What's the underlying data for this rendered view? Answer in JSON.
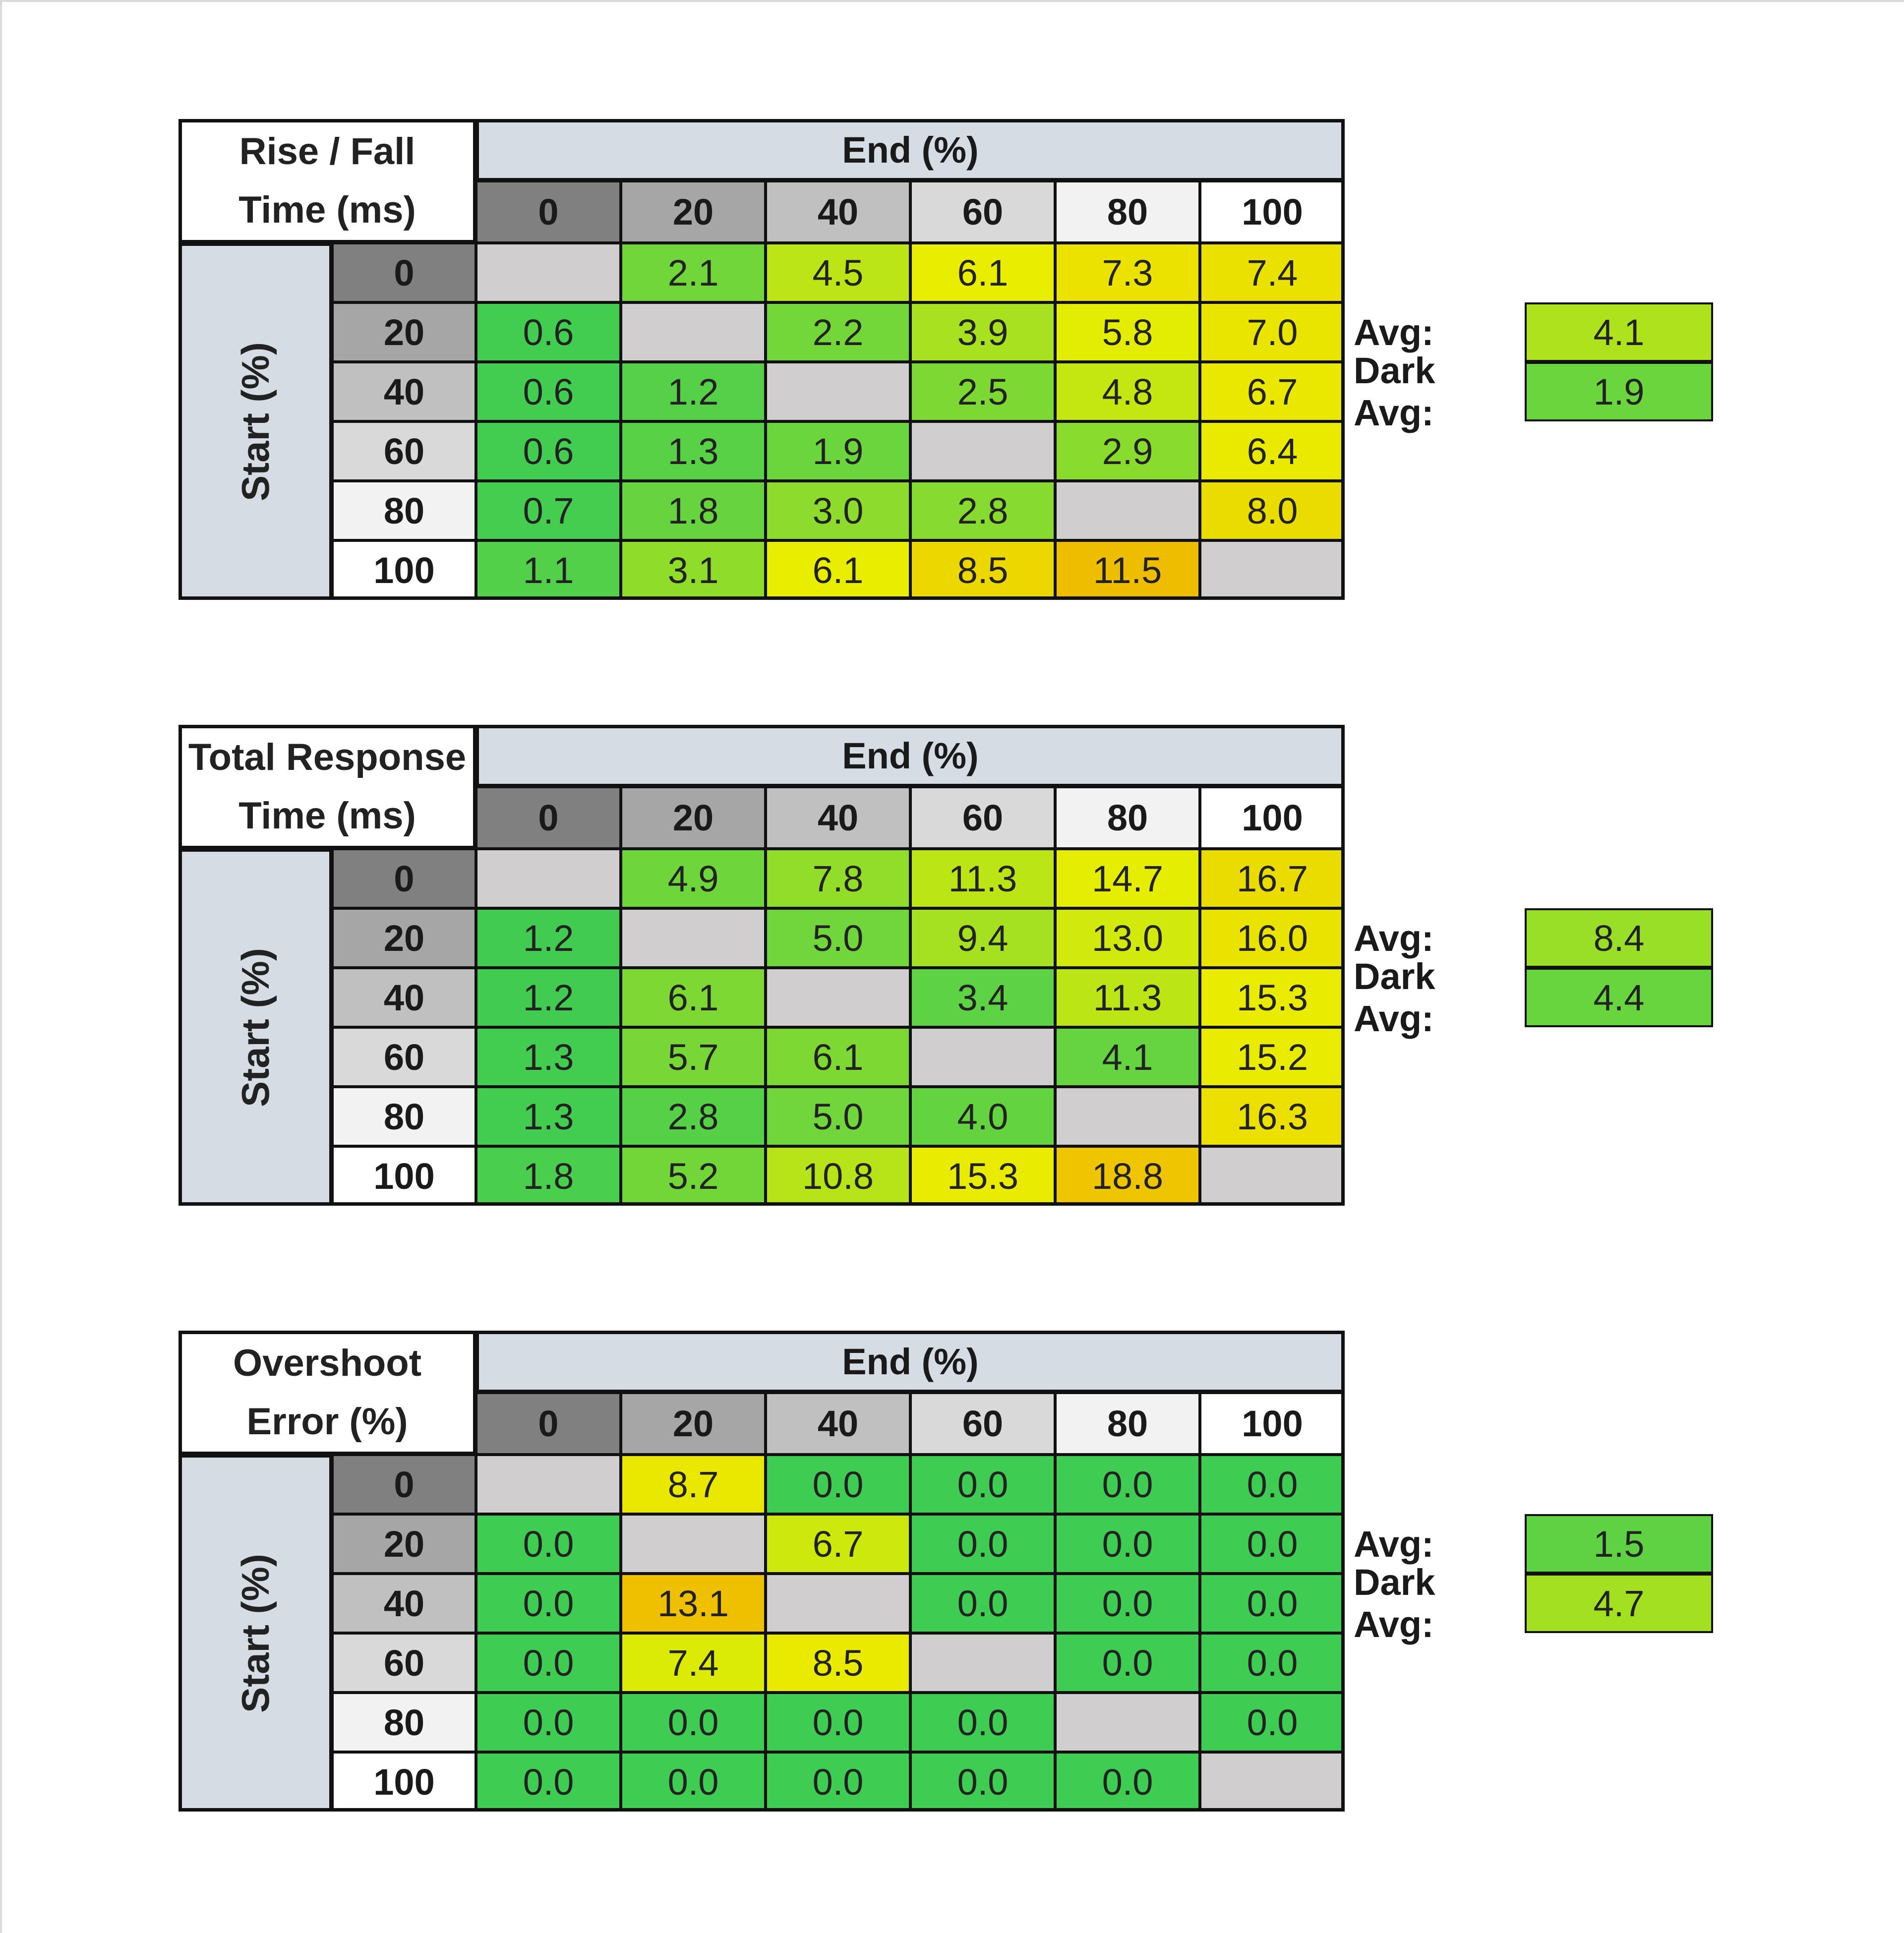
{
  "end_label": "End (%)",
  "start_label": "Start (%)",
  "avg_label": "Avg:",
  "dark_avg_label": "Dark Avg:",
  "levels": [
    "0",
    "20",
    "40",
    "60",
    "80",
    "100"
  ],
  "colors": {
    "blank": "#d0cece",
    "header_band": "#d6dce4",
    "level_shades": [
      "#808080",
      "#a6a6a6",
      "#c0c0c0",
      "#d9d9d9",
      "#f2f2f2",
      "#ffffff"
    ],
    "scale_low": "#3fcc52",
    "scale_mid": "#e9ee00",
    "scale_high": "#f0b800",
    "grid_line": "#111111"
  },
  "chart_data": [
    {
      "type": "heatmap",
      "title_lines": [
        "Rise / Fall",
        "Time (ms)"
      ],
      "xlabel": "End (%)",
      "ylabel": "Start (%)",
      "x": [
        "0",
        "20",
        "40",
        "60",
        "80",
        "100"
      ],
      "y": [
        "0",
        "20",
        "40",
        "60",
        "80",
        "100"
      ],
      "values": [
        [
          null,
          2.1,
          4.5,
          6.1,
          7.3,
          7.4
        ],
        [
          0.6,
          null,
          2.2,
          3.9,
          5.8,
          7.0
        ],
        [
          0.6,
          1.2,
          null,
          2.5,
          4.8,
          6.7
        ],
        [
          0.6,
          1.3,
          1.9,
          null,
          2.9,
          6.4
        ],
        [
          0.7,
          1.8,
          3.0,
          2.8,
          null,
          8.0
        ],
        [
          1.1,
          3.1,
          6.1,
          8.5,
          11.5,
          null
        ]
      ],
      "color_scale": [
        0.5,
        6,
        12
      ],
      "avg": 4.1,
      "dark_avg": 1.9
    },
    {
      "type": "heatmap",
      "title_lines": [
        "Total Response",
        "Time (ms)"
      ],
      "xlabel": "End (%)",
      "ylabel": "Start (%)",
      "x": [
        "0",
        "20",
        "40",
        "60",
        "80",
        "100"
      ],
      "y": [
        "0",
        "20",
        "40",
        "60",
        "80",
        "100"
      ],
      "values": [
        [
          null,
          4.9,
          7.8,
          11.3,
          14.7,
          16.7
        ],
        [
          1.2,
          null,
          5.0,
          9.4,
          13.0,
          16.0
        ],
        [
          1.2,
          6.1,
          null,
          3.4,
          11.3,
          15.3
        ],
        [
          1.3,
          5.7,
          6.1,
          null,
          4.1,
          15.2
        ],
        [
          1.3,
          2.8,
          5.0,
          4.0,
          null,
          16.3
        ],
        [
          1.8,
          5.2,
          10.8,
          15.3,
          18.8,
          null
        ]
      ],
      "color_scale": [
        1,
        15,
        20
      ],
      "avg": 8.4,
      "dark_avg": 4.4
    },
    {
      "type": "heatmap",
      "title_lines": [
        "Overshoot",
        "Error (%)"
      ],
      "xlabel": "End (%)",
      "ylabel": "Start (%)",
      "x": [
        "0",
        "20",
        "40",
        "60",
        "80",
        "100"
      ],
      "y": [
        "0",
        "20",
        "40",
        "60",
        "80",
        "100"
      ],
      "values": [
        [
          null,
          8.7,
          0.0,
          0.0,
          0.0,
          0.0
        ],
        [
          0.0,
          null,
          6.7,
          0.0,
          0.0,
          0.0
        ],
        [
          0.0,
          13.1,
          null,
          0.0,
          0.0,
          0.0
        ],
        [
          0.0,
          7.4,
          8.5,
          null,
          0.0,
          0.0
        ],
        [
          0.0,
          0.0,
          0.0,
          0.0,
          null,
          0.0
        ],
        [
          0.0,
          0.0,
          0.0,
          0.0,
          0.0,
          null
        ]
      ],
      "color_scale": [
        0,
        8,
        14
      ],
      "avg": 1.5,
      "dark_avg": 4.7
    }
  ]
}
